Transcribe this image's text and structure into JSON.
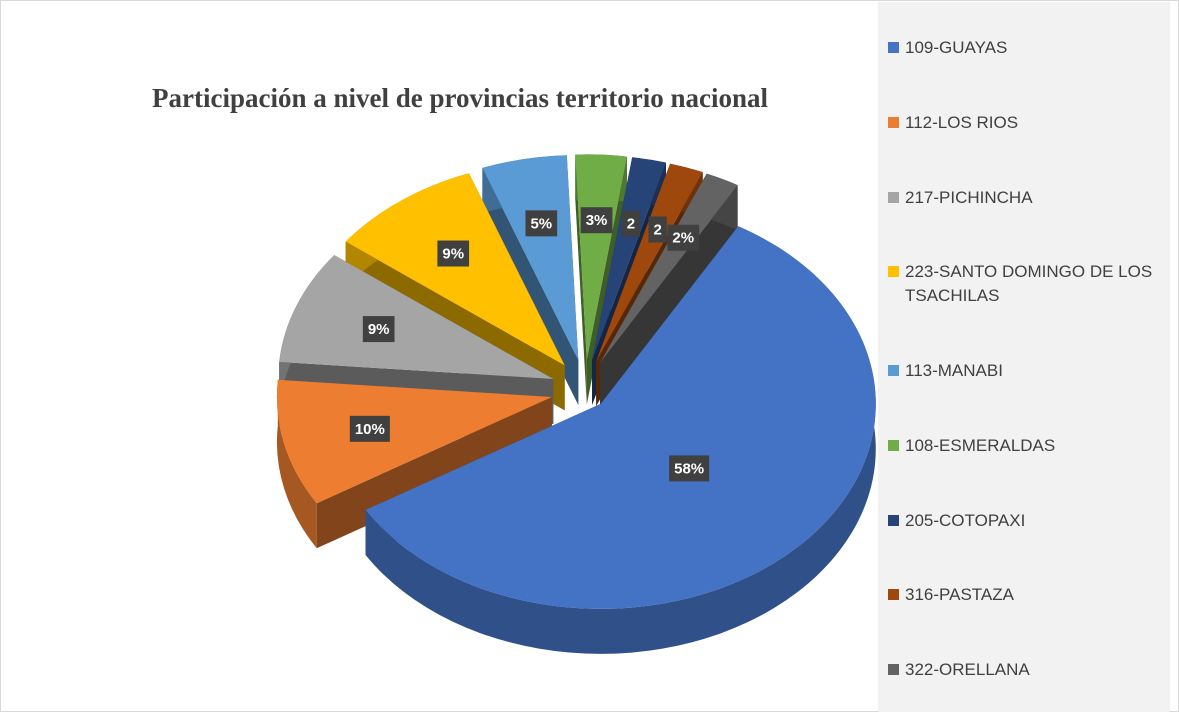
{
  "chart_data": {
    "type": "pie",
    "title": "Participación a nivel de provincias territorio nacional",
    "categories": [
      "109-GUAYAS",
      "112-LOS RIOS",
      "217-PICHINCHA",
      "223-SANTO DOMINGO DE LOS TSACHILAS",
      "113-MANABI",
      "108-ESMERALDAS",
      "205-COTOPAXI",
      "316-PASTAZA",
      "322-ORELLANA"
    ],
    "values": [
      58,
      10,
      9,
      9,
      5,
      3,
      2,
      2,
      2
    ],
    "value_labels": [
      "58%",
      "10%",
      "9%",
      "9%",
      "5%",
      "3%",
      "2",
      "2",
      "2%"
    ],
    "colors": [
      "#4472c4",
      "#ed7d31",
      "#a5a5a5",
      "#ffc000",
      "#5b9bd5",
      "#70ad47",
      "#264478",
      "#9e480e",
      "#636363"
    ]
  }
}
